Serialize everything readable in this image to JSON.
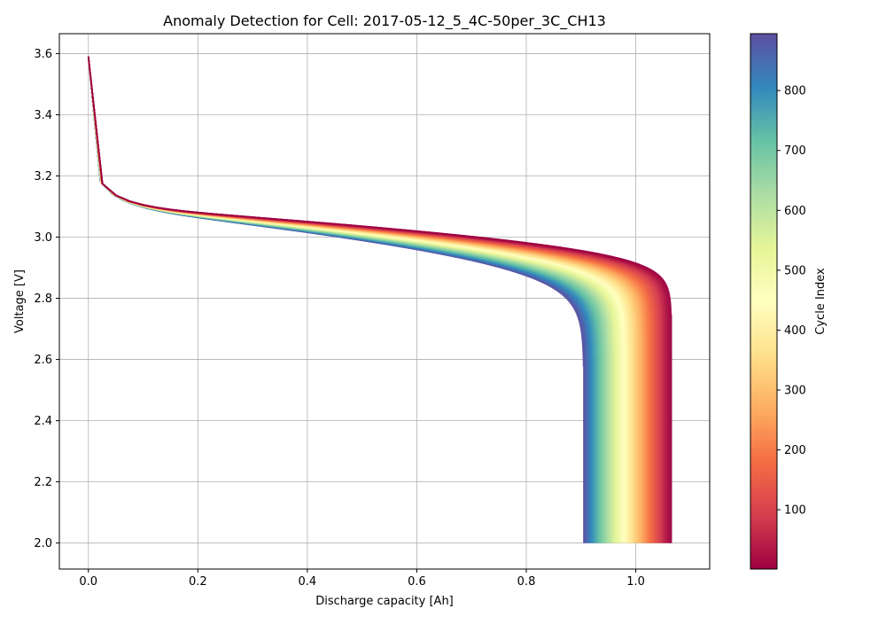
{
  "chart_data": {
    "type": "line",
    "title": "Anomaly Detection for Cell: 2017-05-12_5_4C-50per_3C_CH13",
    "xlabel": "Discharge capacity [Ah]",
    "ylabel": "Voltage [V]",
    "xlim": [
      -0.053,
      1.135
    ],
    "ylim": [
      1.915,
      3.665
    ],
    "xticks": [
      0.0,
      0.2,
      0.4,
      0.6,
      0.8,
      1.0
    ],
    "xtick_labels": [
      "0.0",
      "0.2",
      "0.4",
      "0.6",
      "0.8",
      "1.0"
    ],
    "yticks": [
      2.0,
      2.2,
      2.4,
      2.6,
      2.8,
      3.0,
      3.2,
      3.4,
      3.6
    ],
    "ytick_labels": [
      "2.0",
      "2.2",
      "2.4",
      "2.6",
      "2.8",
      "3.0",
      "3.2",
      "3.4",
      "3.6"
    ],
    "grid": true,
    "colormap": "Spectral",
    "colorbar": {
      "label": "Cycle Index",
      "range": [
        1,
        895
      ],
      "ticks": [
        100,
        200,
        300,
        400,
        500,
        600,
        700,
        800
      ],
      "tick_labels": [
        "100",
        "200",
        "300",
        "400",
        "500",
        "600",
        "700",
        "800"
      ]
    },
    "cycles": {
      "first": 1,
      "last": 895,
      "initial_voltage": 3.59,
      "cutoff_voltage": 2.0,
      "capacity_first_cycle": 1.065,
      "capacity_last_cycle": 0.905
    },
    "representative_series": [
      {
        "cycle": 1,
        "x": [
          0.0,
          0.01,
          0.05,
          0.1,
          0.3,
          0.5,
          0.7,
          0.85,
          0.95,
          1.0,
          1.04,
          1.06,
          1.065
        ],
        "y": [
          3.59,
          3.3,
          3.2,
          3.18,
          3.14,
          3.1,
          3.05,
          2.98,
          2.9,
          2.8,
          2.6,
          2.3,
          2.0
        ]
      },
      {
        "cycle": 450,
        "x": [
          0.0,
          0.01,
          0.05,
          0.1,
          0.3,
          0.5,
          0.7,
          0.85,
          0.95,
          1.0,
          1.02,
          1.025
        ],
        "y": [
          3.59,
          3.3,
          3.2,
          3.17,
          3.13,
          3.09,
          3.03,
          2.92,
          2.75,
          2.45,
          2.2,
          2.0
        ]
      },
      {
        "cycle": 895,
        "x": [
          0.0,
          0.01,
          0.05,
          0.1,
          0.3,
          0.5,
          0.7,
          0.8,
          0.86,
          0.89,
          0.9,
          0.905
        ],
        "y": [
          3.59,
          3.3,
          3.19,
          3.16,
          3.11,
          3.06,
          2.95,
          2.8,
          2.62,
          2.45,
          2.25,
          2.0
        ]
      }
    ]
  }
}
